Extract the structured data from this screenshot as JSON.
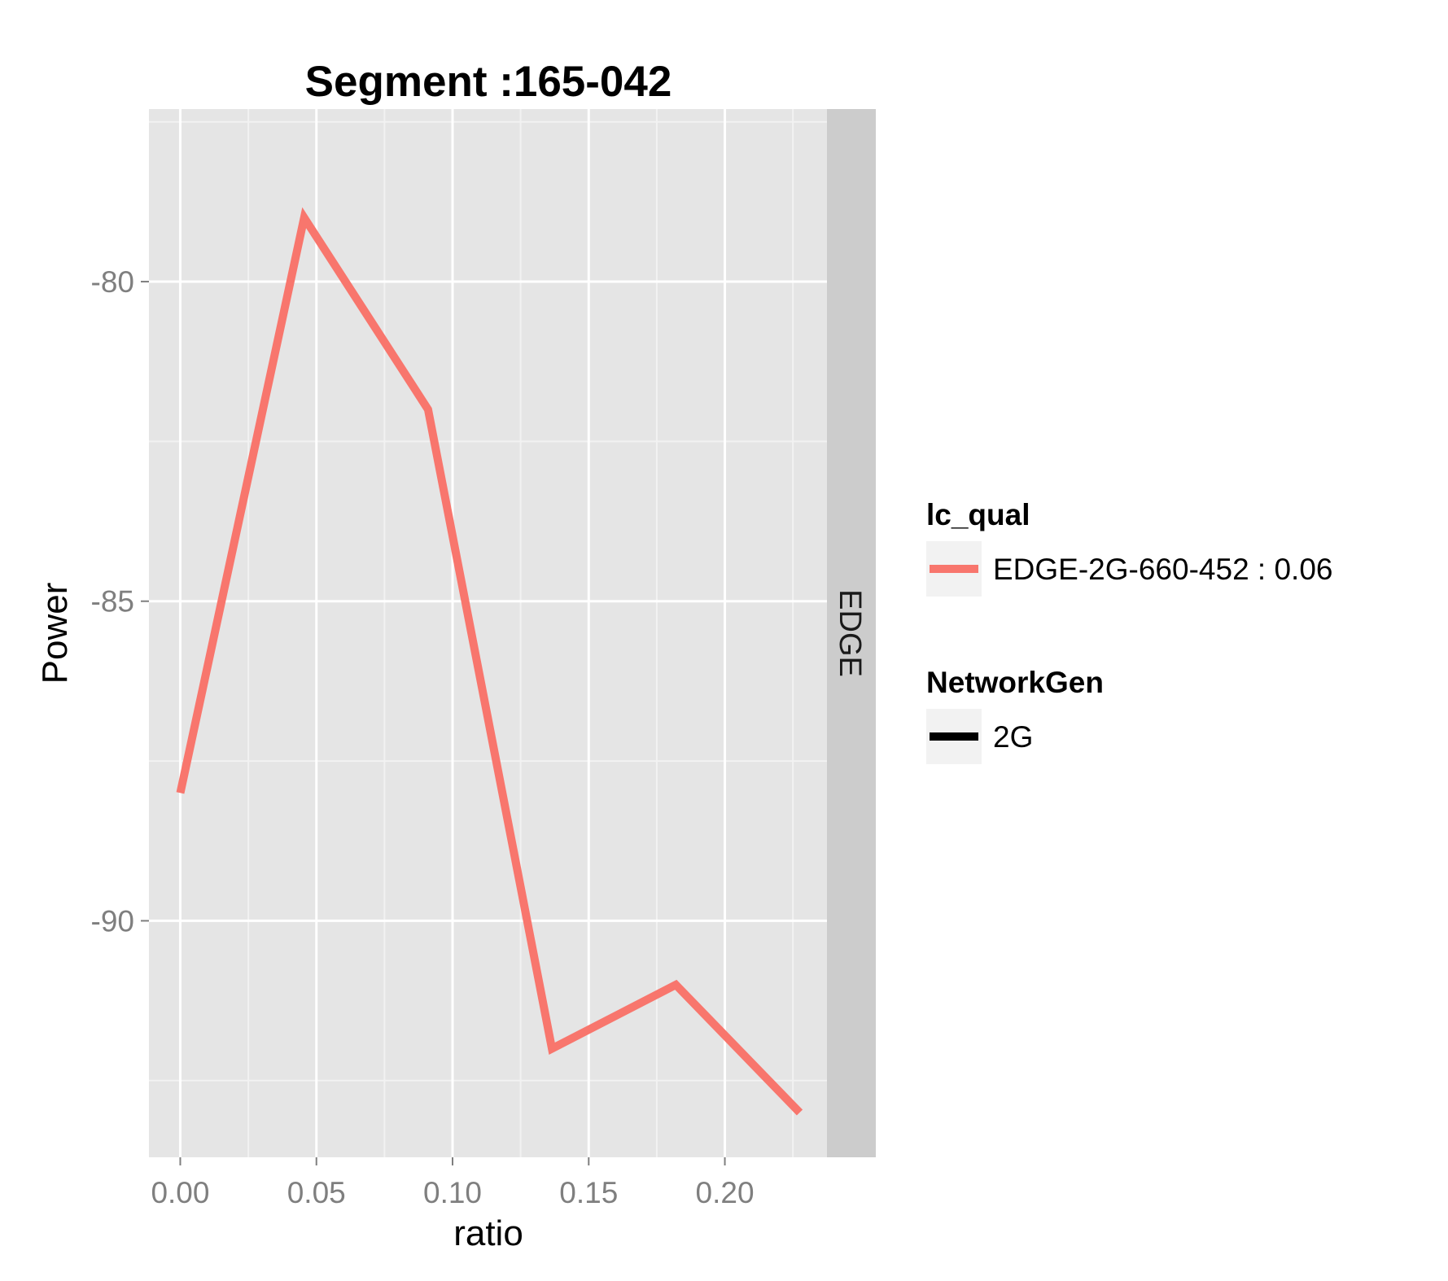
{
  "chart_data": {
    "type": "line",
    "title": "Segment :165-042",
    "xlabel": "ratio",
    "ylabel": "Power",
    "xlim": [
      -0.0115,
      0.2375
    ],
    "ylim": [
      -93.7,
      -77.3
    ],
    "x_ticks": [
      0.0,
      0.05,
      0.1,
      0.15,
      0.2
    ],
    "x_tick_labels": [
      "0.00",
      "0.05",
      "0.10",
      "0.15",
      "0.20"
    ],
    "y_ticks": [
      -80,
      -85,
      -90
    ],
    "y_tick_labels": [
      "-80",
      "-85",
      "-90"
    ],
    "facet_label": "EDGE",
    "grid": true,
    "legend_position": "right",
    "series": [
      {
        "name": "EDGE-2G-660-452 : 0.06",
        "color": "#f8766d",
        "x": [
          0.0,
          0.0455,
          0.091,
          0.1365,
          0.182,
          0.2275
        ],
        "y": [
          -88.0,
          -79.0,
          -82.0,
          -92.0,
          -91.0,
          -93.0
        ]
      }
    ],
    "legends": [
      {
        "title": "lc_qual",
        "items": [
          {
            "label": "EDGE-2G-660-452 : 0.06",
            "color": "#f8766d"
          }
        ]
      },
      {
        "title": "NetworkGen",
        "items": [
          {
            "label": "2G",
            "color": "#000000"
          }
        ]
      }
    ]
  }
}
